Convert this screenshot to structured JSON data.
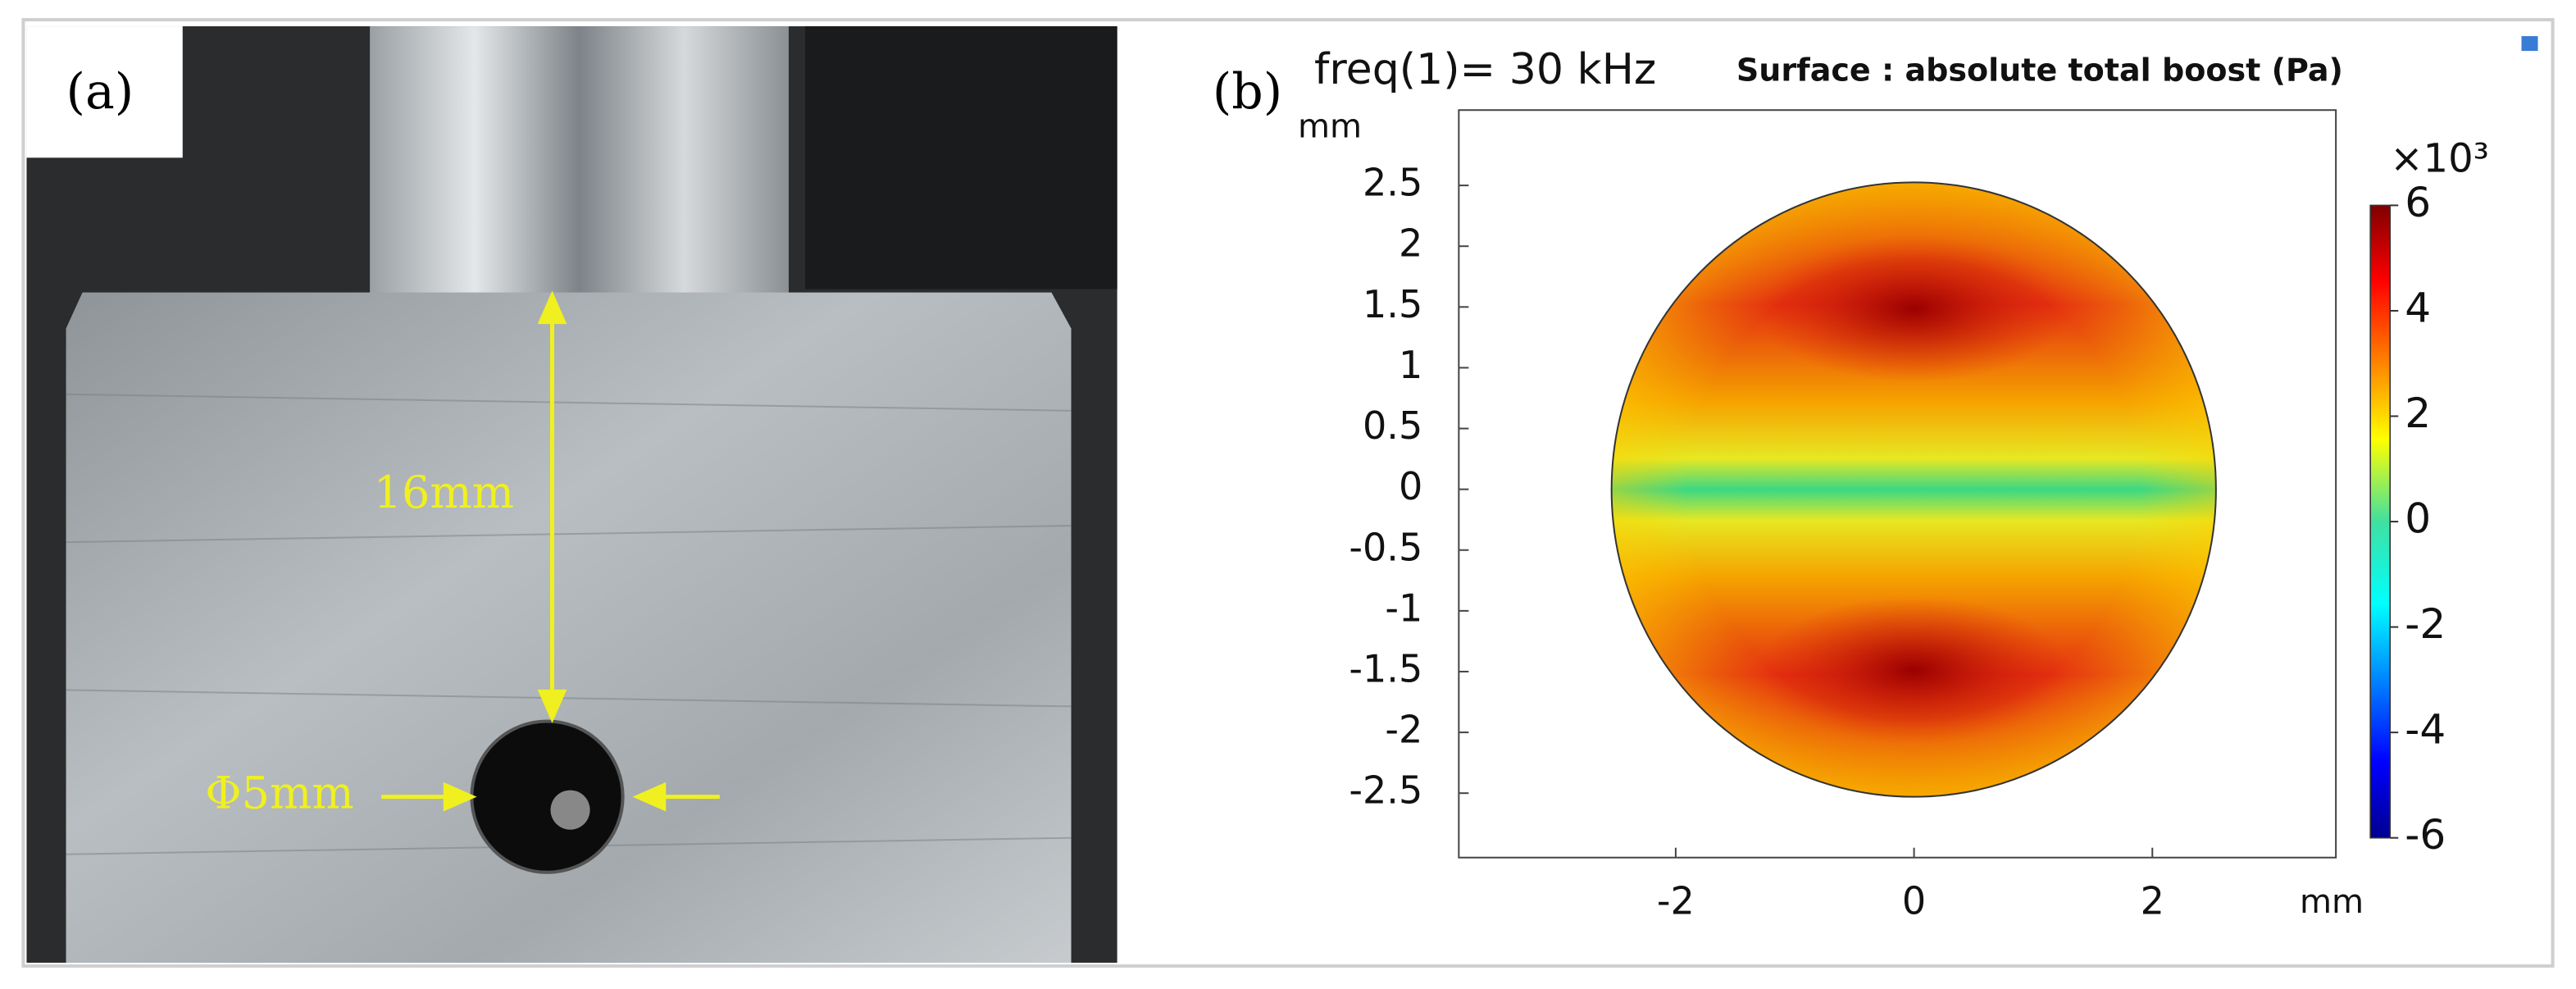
{
  "panel_a": {
    "label": "(a)",
    "annotations": [
      "16mm",
      "Φ5mm"
    ]
  },
  "chart_data": {
    "type": "heatmap",
    "label": "(b)",
    "title": "freq(1)= 30 kHz",
    "subtitle": "Surface : absolute total boost (Pa)",
    "x_label": "mm",
    "y_label": "mm",
    "xlim": [
      -3.82,
      3.54
    ],
    "xticks": [
      -2,
      0,
      2
    ],
    "ylim": [
      -3.03,
      3.12
    ],
    "yticks": [
      -2.5,
      -2,
      -1.5,
      -1,
      -0.5,
      0,
      0.5,
      1,
      1.5,
      2,
      2.5
    ],
    "colorbar": {
      "label": "×10³",
      "clim": [
        -6,
        6
      ],
      "ticks": [
        -6,
        -4,
        -2,
        0,
        2,
        4,
        6
      ]
    }
  }
}
